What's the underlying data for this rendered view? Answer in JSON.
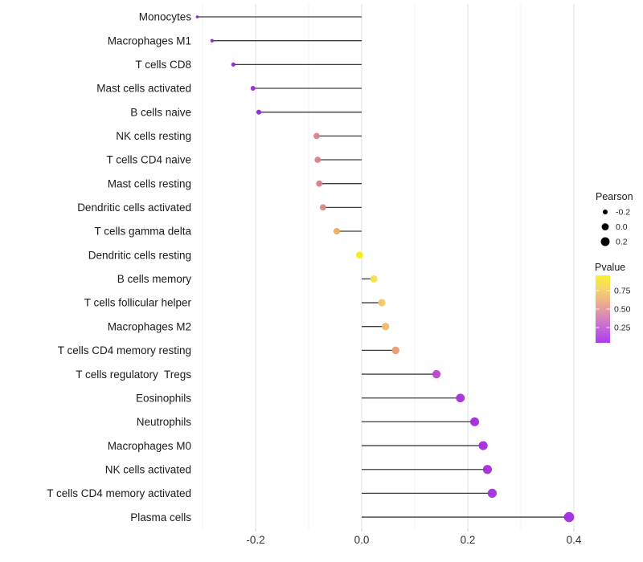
{
  "chart_data": {
    "type": "lollipop",
    "title": "",
    "xlabel": "",
    "ylabel": "",
    "x_axis": {
      "tick_labels": [
        "-0.2",
        "0.0",
        "0.2",
        "0.4"
      ],
      "tick_values": [
        -0.2,
        0.0,
        0.2,
        0.4
      ],
      "minor_tick_values": [
        -0.3,
        -0.1,
        0.1,
        0.3
      ],
      "range": [
        -0.315,
        0.45
      ]
    },
    "grid": "vertical-only",
    "legend_position": "right",
    "points": [
      {
        "label": "Monocytes",
        "pearson": -0.31,
        "pvalue_color": "#8526c0"
      },
      {
        "label": "Macrophages M1",
        "pearson": -0.282,
        "pvalue_color": "#9129cd"
      },
      {
        "label": "T cells CD8",
        "pearson": -0.242,
        "pvalue_color": "#9329d0"
      },
      {
        "label": "Mast cells activated",
        "pearson": -0.205,
        "pvalue_color": "#9c2dd4"
      },
      {
        "label": "B cells naive",
        "pearson": -0.194,
        "pvalue_color": "#9528cf"
      },
      {
        "label": "NK cells resting",
        "pearson": -0.085,
        "pvalue_color": "#d9838f"
      },
      {
        "label": "T cells CD4 naive",
        "pearson": -0.083,
        "pvalue_color": "#d8808c"
      },
      {
        "label": "Mast cells resting",
        "pearson": -0.08,
        "pvalue_color": "#d77f8f"
      },
      {
        "label": "Dendritic cells activated",
        "pearson": -0.073,
        "pvalue_color": "#d98a83"
      },
      {
        "label": "T cells gamma delta",
        "pearson": -0.047,
        "pvalue_color": "#ecae60"
      },
      {
        "label": "Dendritic cells resting",
        "pearson": -0.004,
        "pvalue_color": "#f7ef0c"
      },
      {
        "label": "B cells memory",
        "pearson": 0.023,
        "pvalue_color": "#f3e24b"
      },
      {
        "label": "T cells follicular helper",
        "pearson": 0.038,
        "pvalue_color": "#f1c968"
      },
      {
        "label": "Macrophages M2",
        "pearson": 0.045,
        "pvalue_color": "#f0bc6a"
      },
      {
        "label": "T cells CD4 memory resting",
        "pearson": 0.064,
        "pvalue_color": "#e99c76"
      },
      {
        "label": "T cells regulatory  Tregs",
        "pearson": 0.141,
        "pvalue_color": "#c145d1"
      },
      {
        "label": "Eosinophils",
        "pearson": 0.186,
        "pvalue_color": "#aa30da"
      },
      {
        "label": "Neutrophils",
        "pearson": 0.213,
        "pvalue_color": "#a42cd8"
      },
      {
        "label": "Macrophages M0",
        "pearson": 0.229,
        "pvalue_color": "#a62fdc"
      },
      {
        "label": "NK cells activated",
        "pearson": 0.237,
        "pvalue_color": "#a62fdc"
      },
      {
        "label": "T cells CD4 memory activated",
        "pearson": 0.246,
        "pvalue_color": "#a831e0"
      },
      {
        "label": "Plasma cells",
        "pearson": 0.391,
        "pvalue_color": "#a32ce0"
      }
    ],
    "legend_pearson": {
      "title": "Pearson",
      "entries": [
        {
          "label": "-0.2",
          "value": -0.2
        },
        {
          "label": "0.0",
          "value": 0.0
        },
        {
          "label": "0.2",
          "value": 0.2
        }
      ],
      "dot_color": "#000000"
    },
    "legend_pvalue": {
      "title": "Pvalue",
      "tick_labels": [
        "0.75",
        "0.50",
        "0.25"
      ],
      "gradient": [
        {
          "offset": 0.0,
          "color": "#f9f12c"
        },
        {
          "offset": 0.18,
          "color": "#f6d767"
        },
        {
          "offset": 0.38,
          "color": "#efb287"
        },
        {
          "offset": 0.55,
          "color": "#df93ab"
        },
        {
          "offset": 0.75,
          "color": "#c96cd6"
        },
        {
          "offset": 1.0,
          "color": "#ae3cef"
        }
      ]
    },
    "style_colors": {
      "stem": "#3d3d3d",
      "grid_major": "#e4e4e4",
      "grid_minor": "#f0f0f0"
    }
  }
}
